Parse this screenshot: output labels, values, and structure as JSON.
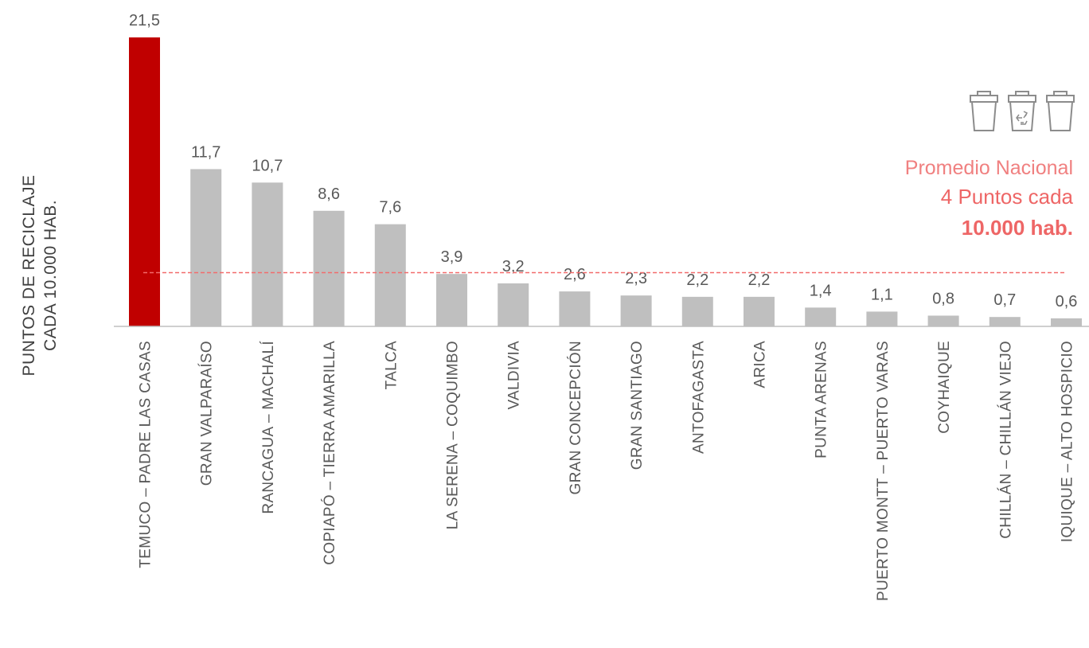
{
  "chart_data": {
    "type": "bar",
    "categories": [
      "TEMUCO – PADRE LAS CASAS",
      "GRAN VALPARAÍSO",
      "RANCAGUA – MACHALÍ",
      "COPIAPÓ – TIERRA AMARILLA",
      "TALCA",
      "LA SERENA – COQUIMBO",
      "VALDIVIA",
      "GRAN CONCEPCIÓN",
      "GRAN SANTIAGO",
      "ANTOFAGASTA",
      "ARICA",
      "PUNTA ARENAS",
      "PUERTO MONTT – PUERTO VARAS",
      "COYHAIQUE",
      "CHILLÁN – CHILLÁN VIEJO",
      "IQUIQUE – ALTO HOSPICIO"
    ],
    "values": [
      21.5,
      11.7,
      10.7,
      8.6,
      7.6,
      3.9,
      3.2,
      2.6,
      2.3,
      2.2,
      2.2,
      1.4,
      1.1,
      0.8,
      0.7,
      0.6
    ],
    "value_labels": [
      "21,5",
      "11,7",
      "10,7",
      "8,6",
      "7,6",
      "3,9",
      "3,2",
      "2,6",
      "2,3",
      "2,2",
      "2,2",
      "1,4",
      "1,1",
      "0,8",
      "0,7",
      "0,6"
    ],
    "ylabel_lines": [
      "PUNTOS DE RECICLAJE",
      "CADA 10.000 HAB."
    ],
    "ylim": [
      0,
      21.5
    ],
    "reference_line": {
      "value": 4
    },
    "highlight_index": 0,
    "colors": {
      "highlight": "#c00000",
      "bar": "#bfbfbf",
      "reference": "#f26b6b",
      "axis": "#bfbfbf"
    },
    "grid": false
  },
  "annotation": {
    "line1": "Promedio Nacional",
    "line2": "4 Puntos cada",
    "line3": "10.000 hab.",
    "icon": "recycling-bins-icon"
  }
}
